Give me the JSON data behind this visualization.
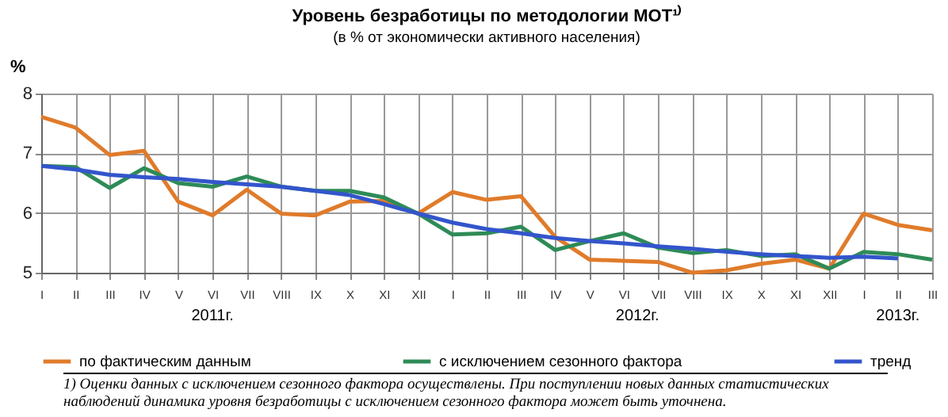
{
  "chart_data": {
    "type": "line",
    "title": "Уровень безработицы по методологии МОТ¹⁾",
    "subtitle": "(в % от экономически активного населения)",
    "ylabel": "%",
    "categories": [
      "I",
      "II",
      "III",
      "IV",
      "V",
      "VI",
      "VII",
      "VIII",
      "IX",
      "X",
      "XI",
      "XII",
      "I",
      "II",
      "III",
      "IV",
      "V",
      "VI",
      "VII",
      "VIII",
      "IX",
      "X",
      "XI",
      "XII",
      "I",
      "II",
      "III"
    ],
    "series": [
      {
        "name": "по фактическим данным",
        "color": "#e07b2a",
        "values": [
          7.61,
          7.43,
          6.97,
          7.04,
          6.19,
          5.96,
          6.39,
          5.99,
          5.96,
          6.19,
          6.2,
          5.99,
          6.35,
          6.22,
          6.28,
          5.6,
          5.22,
          5.2,
          5.18,
          5.0,
          5.04,
          5.15,
          5.22,
          5.07,
          5.99,
          5.8,
          5.71
        ]
      },
      {
        "name": "с исключением сезонного фактора",
        "color": "#2e8b57",
        "values": [
          6.79,
          6.77,
          6.42,
          6.75,
          6.5,
          6.44,
          6.61,
          6.44,
          6.37,
          6.37,
          6.26,
          5.99,
          5.64,
          5.66,
          5.77,
          5.38,
          5.53,
          5.66,
          5.42,
          5.33,
          5.38,
          5.28,
          5.31,
          5.07,
          5.35,
          5.31,
          5.22
        ]
      },
      {
        "name": "тренд",
        "color": "#3355cc",
        "values": [
          6.79,
          6.73,
          6.64,
          6.6,
          6.57,
          6.52,
          6.48,
          6.44,
          6.37,
          6.3,
          6.15,
          5.99,
          5.84,
          5.73,
          5.66,
          5.58,
          5.53,
          5.49,
          5.44,
          5.4,
          5.35,
          5.31,
          5.28,
          5.25,
          5.27,
          5.24,
          null
        ]
      }
    ],
    "ylim": [
      5,
      8
    ],
    "yticks": [
      5,
      6,
      7,
      8
    ],
    "grid": true,
    "legend": "bottom",
    "annotations": [
      "2011г.",
      "2012г.",
      "2013г.",
      "1) Оценки данных с исключением сезонного фактора осуществлены. При поступлении новых данных статистических наблюдений динамика уровня безработицы с исключением сезонного фактора может быть уточнена."
    ]
  }
}
